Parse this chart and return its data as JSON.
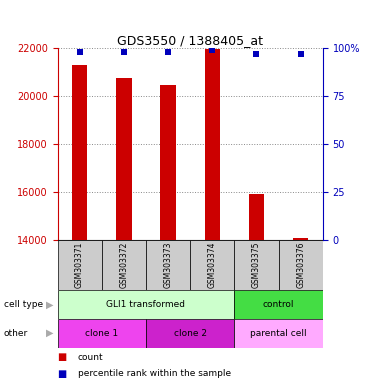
{
  "title": "GDS3550 / 1388405_at",
  "samples": [
    "GSM303371",
    "GSM303372",
    "GSM303373",
    "GSM303374",
    "GSM303375",
    "GSM303376"
  ],
  "bar_values": [
    21300,
    20750,
    20450,
    21950,
    15900,
    14080
  ],
  "percentile_values": [
    98,
    98,
    98,
    99,
    97,
    97
  ],
  "ylim_left": [
    14000,
    22000
  ],
  "ylim_right": [
    0,
    100
  ],
  "yticks_left": [
    14000,
    16000,
    18000,
    20000,
    22000
  ],
  "yticks_right": [
    0,
    25,
    50,
    75,
    100
  ],
  "bar_color": "#cc0000",
  "percentile_color": "#0000bb",
  "bar_width": 0.35,
  "cell_type_groups": [
    {
      "label": "GLI1 transformed",
      "span": [
        0,
        4
      ],
      "color": "#ccffcc"
    },
    {
      "label": "control",
      "span": [
        4,
        6
      ],
      "color": "#44dd44"
    }
  ],
  "other_groups": [
    {
      "label": "clone 1",
      "span": [
        0,
        2
      ],
      "color": "#ee44ee"
    },
    {
      "label": "clone 2",
      "span": [
        2,
        4
      ],
      "color": "#cc22cc"
    },
    {
      "label": "parental cell",
      "span": [
        4,
        6
      ],
      "color": "#ffaaff"
    }
  ],
  "cell_type_label": "cell type",
  "other_label": "other",
  "legend_count_label": "count",
  "legend_percentile_label": "percentile rank within the sample",
  "left_axis_color": "#cc0000",
  "right_axis_color": "#0000bb",
  "background_color": "#ffffff",
  "grid_color": "#888888",
  "sample_box_color": "#cccccc"
}
